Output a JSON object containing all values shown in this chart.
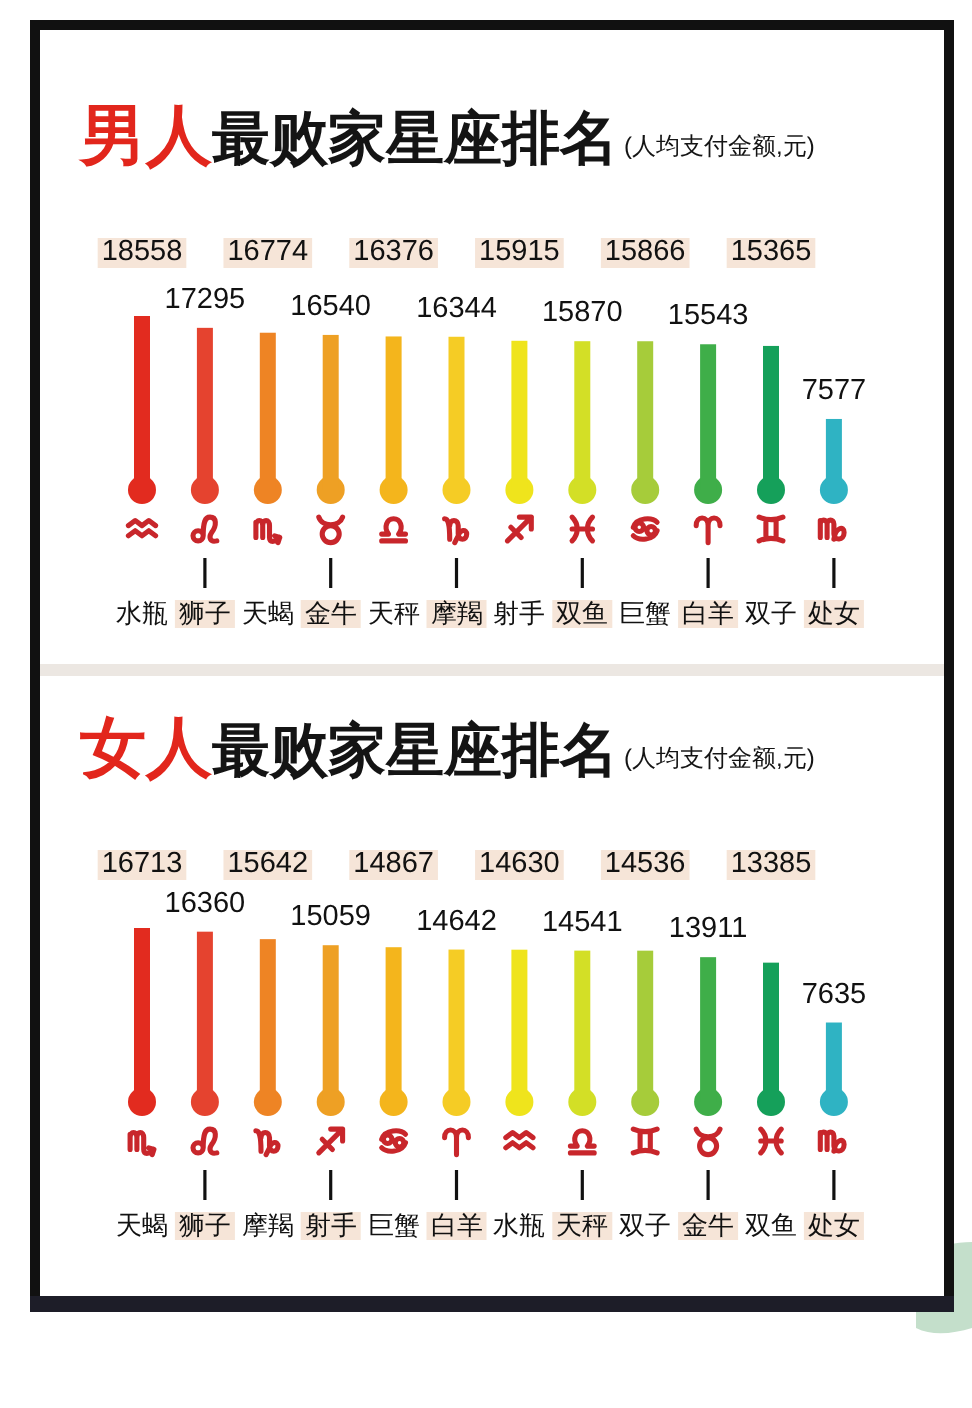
{
  "chart_data": [
    {
      "type": "bar",
      "title": "**男人**最败家星座排名",
      "subtitle": "(人均支付金额,元)",
      "categories": [
        "水瓶",
        "狮子",
        "天蝎",
        "金牛",
        "天秤",
        "摩羯",
        "射手",
        "双鱼",
        "巨蟹",
        "白羊",
        "双子",
        "处女"
      ],
      "values": [
        18558,
        17295,
        16774,
        16540,
        16376,
        16344,
        15915,
        15870,
        15866,
        15543,
        15365,
        7577
      ],
      "colors": [
        "#e22b1f",
        "#e5432f",
        "#ee8424",
        "#eea024",
        "#f4b51c",
        "#f5cc25",
        "#efe41c",
        "#d3df26",
        "#a6cc3a",
        "#3fae49",
        "#15a05a",
        "#2fb3c3"
      ],
      "data_labels": true
    },
    {
      "type": "bar",
      "title": "**女人**最败家星座排名",
      "subtitle": "(人均支付金额,元)",
      "categories": [
        "天蝎",
        "狮子",
        "摩羯",
        "射手",
        "巨蟹",
        "白羊",
        "水瓶",
        "天秤",
        "双子",
        "金牛",
        "双鱼",
        "处女"
      ],
      "values": [
        16713,
        16360,
        15642,
        15059,
        14867,
        14642,
        14630,
        14541,
        14536,
        13911,
        13385,
        7635
      ],
      "colors": [
        "#e22b1f",
        "#e5432f",
        "#ee8424",
        "#eea024",
        "#f4b51c",
        "#f5cc25",
        "#efe41c",
        "#d3df26",
        "#a6cc3a",
        "#3fae49",
        "#15a05a",
        "#2fb3c3"
      ],
      "data_labels": true
    }
  ]
}
